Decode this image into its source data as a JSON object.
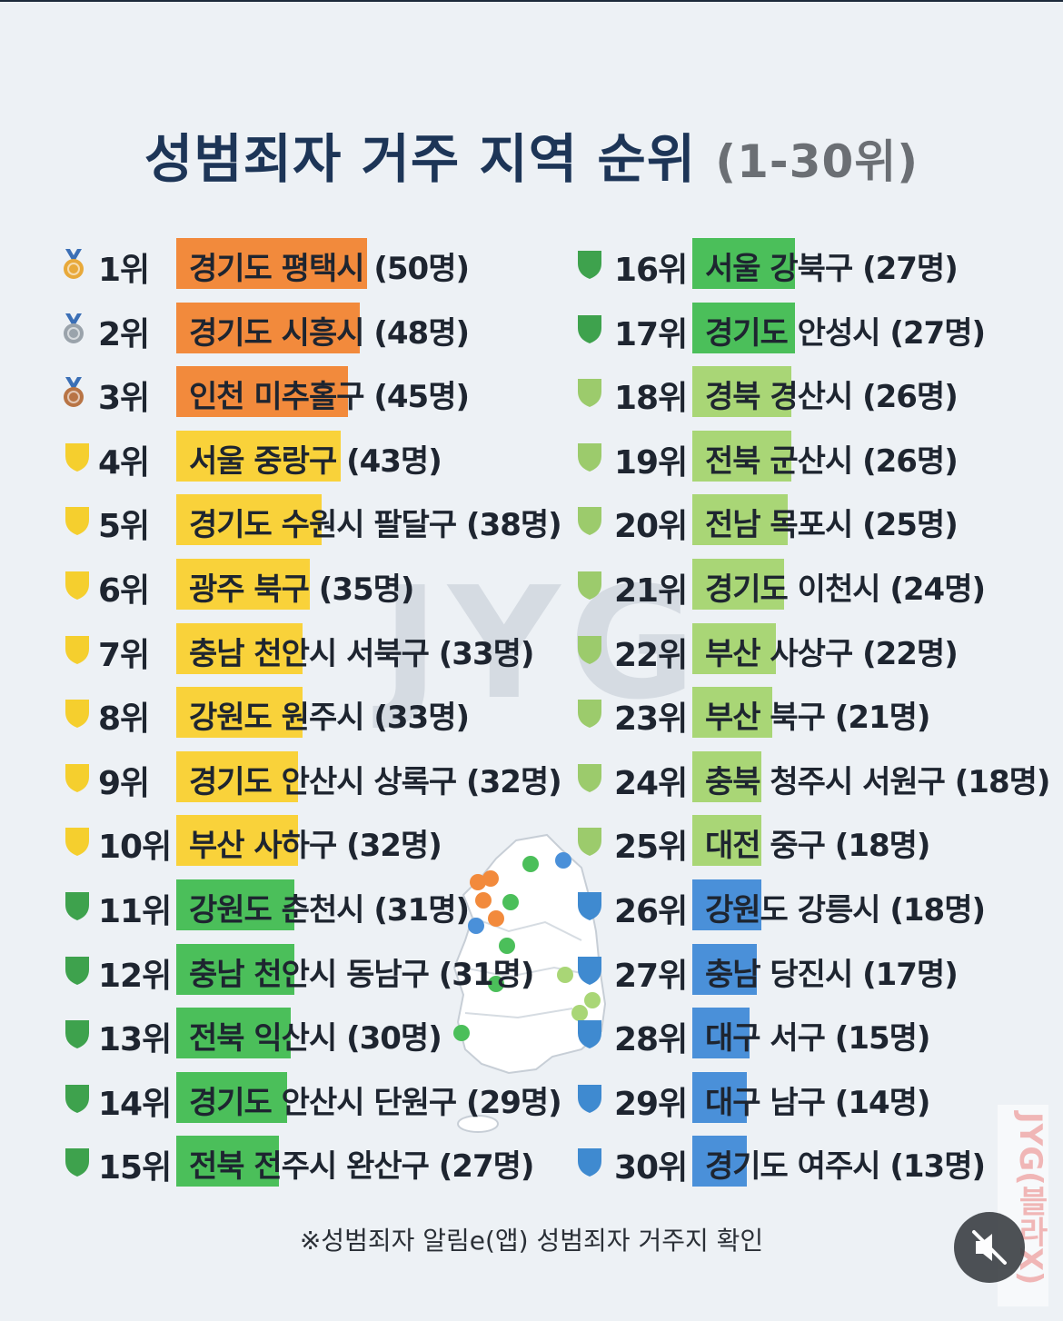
{
  "title": {
    "main": "성범죄자 거주 지역 순위",
    "sub": "(1-30위)"
  },
  "watermark": "JYG",
  "side_watermark": "JYG(블라X)",
  "footnote": "※성범죄자 알림e(앱) 성범죄자 거주지 확인",
  "colors": {
    "orange": "#f28a3c",
    "yellow": "#f9d23a",
    "green": "#4bbf5a",
    "light_green": "#a9d676",
    "blue": "#4a90d9",
    "title": "#1d3557"
  },
  "ranks": [
    {
      "rank": "1위",
      "label": "경기도 평택시 (50명)",
      "count": 50,
      "tier": "gold"
    },
    {
      "rank": "2위",
      "label": "경기도 시흥시 (48명)",
      "count": 48,
      "tier": "silver"
    },
    {
      "rank": "3위",
      "label": "인천 미추홀구 (45명)",
      "count": 45,
      "tier": "bronze"
    },
    {
      "rank": "4위",
      "label": "서울 중랑구 (43명)",
      "count": 43,
      "tier": "yellow"
    },
    {
      "rank": "5위",
      "label": "경기도 수원시 팔달구 (38명)",
      "count": 38,
      "tier": "yellow"
    },
    {
      "rank": "6위",
      "label": "광주 북구 (35명)",
      "count": 35,
      "tier": "yellow"
    },
    {
      "rank": "7위",
      "label": "충남 천안시 서북구 (33명)",
      "count": 33,
      "tier": "yellow"
    },
    {
      "rank": "8위",
      "label": "강원도 원주시 (33명)",
      "count": 33,
      "tier": "yellow"
    },
    {
      "rank": "9위",
      "label": "경기도 안산시 상록구 (32명)",
      "count": 32,
      "tier": "yellow"
    },
    {
      "rank": "10위",
      "label": "부산 사하구 (32명)",
      "count": 32,
      "tier": "yellow"
    },
    {
      "rank": "11위",
      "label": "강원도 춘천시 (31명)",
      "count": 31,
      "tier": "green"
    },
    {
      "rank": "12위",
      "label": "충남 천안시 동남구 (31명)",
      "count": 31,
      "tier": "green"
    },
    {
      "rank": "13위",
      "label": "전북 익산시 (30명)",
      "count": 30,
      "tier": "green"
    },
    {
      "rank": "14위",
      "label": "경기도 안산시 단원구 (29명)",
      "count": 29,
      "tier": "green"
    },
    {
      "rank": "15위",
      "label": "전북 전주시 완산구 (27명)",
      "count": 27,
      "tier": "green"
    },
    {
      "rank": "16위",
      "label": "서울 강북구 (27명)",
      "count": 27,
      "tier": "green"
    },
    {
      "rank": "17위",
      "label": "경기도 안성시 (27명)",
      "count": 27,
      "tier": "green"
    },
    {
      "rank": "18위",
      "label": "경북 경산시 (26명)",
      "count": 26,
      "tier": "lightgreen"
    },
    {
      "rank": "19위",
      "label": "전북 군산시 (26명)",
      "count": 26,
      "tier": "lightgreen"
    },
    {
      "rank": "20위",
      "label": "전남 목포시 (25명)",
      "count": 25,
      "tier": "lightgreen"
    },
    {
      "rank": "21위",
      "label": "경기도 이천시 (24명)",
      "count": 24,
      "tier": "lightgreen"
    },
    {
      "rank": "22위",
      "label": "부산 사상구 (22명)",
      "count": 22,
      "tier": "lightgreen"
    },
    {
      "rank": "23위",
      "label": "부산 북구 (21명)",
      "count": 21,
      "tier": "lightgreen"
    },
    {
      "rank": "24위",
      "label": "충북 청주시 서원구 (18명)",
      "count": 18,
      "tier": "lightgreen"
    },
    {
      "rank": "25위",
      "label": "대전 중구 (18명)",
      "count": 18,
      "tier": "lightgreen"
    },
    {
      "rank": "26위",
      "label": "강원도 강릉시 (18명)",
      "count": 18,
      "tier": "blue"
    },
    {
      "rank": "27위",
      "label": "충남 당진시 (17명)",
      "count": 17,
      "tier": "blue"
    },
    {
      "rank": "28위",
      "label": "대구 서구 (15명)",
      "count": 15,
      "tier": "blue"
    },
    {
      "rank": "29위",
      "label": "대구 남구 (14명)",
      "count": 14,
      "tier": "blue"
    },
    {
      "rank": "30위",
      "label": "경기도 여주시 (13명)",
      "count": 13,
      "tier": "blue"
    }
  ]
}
